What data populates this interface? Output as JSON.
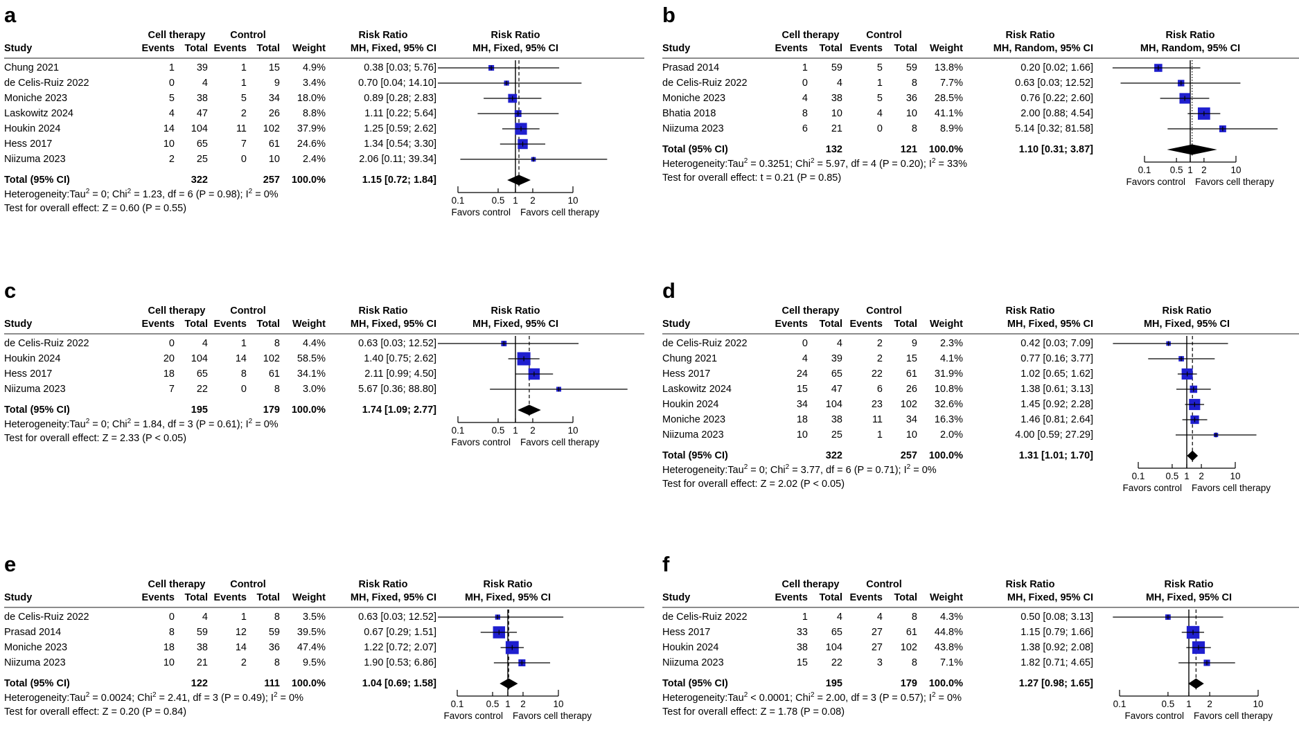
{
  "labels": {
    "study_header": "Study",
    "group_treatment": "Cell therapy",
    "group_control": "Control",
    "events_header": "Events",
    "total_header": "Total",
    "weight_header": "Weight",
    "rr_header": "Risk Ratio",
    "favors_left": "Favors control",
    "favors_right": "Favors cell therapy"
  },
  "colors": {
    "square": "#1f1fcf",
    "diamond": "#000000",
    "rule_gray": "#8c8c8c",
    "line_black": "#000000"
  },
  "chart_data": {
    "type": "forest",
    "x_scale": "log",
    "axis_tick_values": [
      0.1,
      0.5,
      1,
      2,
      10
    ],
    "axis_tick_labels": [
      "0.1",
      "0.5",
      "1",
      "2",
      "10"
    ],
    "panels": [
      {
        "panel_label": "a",
        "model": "MH, Fixed, 95% CI",
        "studies": [
          {
            "name": "Chung 2021",
            "e1": "1",
            "t1": "39",
            "e2": "1",
            "t2": "15",
            "weight_label": "4.9%",
            "weight": 4.9,
            "rr": 0.38,
            "lo": 0.03,
            "hi": 5.76,
            "rr_label": "0.38 [0.03; 5.76]"
          },
          {
            "name": "de Celis-Ruiz 2022",
            "e1": "0",
            "t1": "4",
            "e2": "1",
            "t2": "9",
            "weight_label": "3.4%",
            "weight": 3.4,
            "rr": 0.7,
            "lo": 0.04,
            "hi": 14.1,
            "rr_label": "0.70 [0.04; 14.10]"
          },
          {
            "name": "Moniche 2023",
            "e1": "5",
            "t1": "38",
            "e2": "5",
            "t2": "34",
            "weight_label": "18.0%",
            "weight": 18.0,
            "rr": 0.89,
            "lo": 0.28,
            "hi": 2.83,
            "rr_label": "0.89 [0.28; 2.83]"
          },
          {
            "name": "Laskowitz 2024",
            "e1": "4",
            "t1": "47",
            "e2": "2",
            "t2": "26",
            "weight_label": "8.8%",
            "weight": 8.8,
            "rr": 1.11,
            "lo": 0.22,
            "hi": 5.64,
            "rr_label": "1.11 [0.22; 5.64]"
          },
          {
            "name": "Houkin 2024",
            "e1": "14",
            "t1": "104",
            "e2": "11",
            "t2": "102",
            "weight_label": "37.9%",
            "weight": 37.9,
            "rr": 1.25,
            "lo": 0.59,
            "hi": 2.62,
            "rr_label": "1.25 [0.59; 2.62]"
          },
          {
            "name": "Hess 2017",
            "e1": "10",
            "t1": "65",
            "e2": "7",
            "t2": "61",
            "weight_label": "24.6%",
            "weight": 24.6,
            "rr": 1.34,
            "lo": 0.54,
            "hi": 3.3,
            "rr_label": "1.34 [0.54; 3.30]"
          },
          {
            "name": "Niizuma 2023",
            "e1": "2",
            "t1": "25",
            "e2": "0",
            "t2": "10",
            "weight_label": "2.4%",
            "weight": 2.4,
            "rr": 2.06,
            "lo": 0.11,
            "hi": 39.34,
            "rr_label": "2.06 [0.11; 39.34]"
          }
        ],
        "total": {
          "label": "Total (95% CI)",
          "t1": "322",
          "t2": "257",
          "weight_label": "100.0%",
          "rr": 1.15,
          "lo": 0.72,
          "hi": 1.84,
          "rr_label": "1.15 [0.72; 1.84]"
        },
        "heterogeneity": "Heterogeneity:Tau² = 0; Chi² = 1.23, df = 6 (P = 0.98); I² = 0%",
        "overall_test": "Test for overall effect: Z = 0.60 (P = 0.55)"
      },
      {
        "panel_label": "b",
        "model": "MH, Random, 95% CI",
        "studies": [
          {
            "name": "Prasad 2014",
            "e1": "1",
            "t1": "59",
            "e2": "5",
            "t2": "59",
            "weight_label": "13.8%",
            "weight": 13.8,
            "rr": 0.2,
            "lo": 0.02,
            "hi": 1.66,
            "rr_label": "0.20 [0.02; 1.66]"
          },
          {
            "name": "de Celis-Ruiz 2022",
            "e1": "0",
            "t1": "4",
            "e2": "1",
            "t2": "8",
            "weight_label": "7.7%",
            "weight": 7.7,
            "rr": 0.63,
            "lo": 0.03,
            "hi": 12.52,
            "rr_label": "0.63 [0.03; 12.52]"
          },
          {
            "name": "Moniche 2023",
            "e1": "4",
            "t1": "38",
            "e2": "5",
            "t2": "36",
            "weight_label": "28.5%",
            "weight": 28.5,
            "rr": 0.76,
            "lo": 0.22,
            "hi": 2.6,
            "rr_label": "0.76 [0.22; 2.60]"
          },
          {
            "name": "Bhatia 2018",
            "e1": "8",
            "t1": "10",
            "e2": "4",
            "t2": "10",
            "weight_label": "41.1%",
            "weight": 41.1,
            "rr": 2.0,
            "lo": 0.88,
            "hi": 4.54,
            "rr_label": "2.00 [0.88; 4.54]"
          },
          {
            "name": "Niizuma 2023",
            "e1": "6",
            "t1": "21",
            "e2": "0",
            "t2": "8",
            "weight_label": "8.9%",
            "weight": 8.9,
            "rr": 5.14,
            "lo": 0.32,
            "hi": 81.58,
            "rr_label": "5.14 [0.32; 81.58]"
          }
        ],
        "total": {
          "label": "Total (95% CI)",
          "t1": "132",
          "t2": "121",
          "weight_label": "100.0%",
          "rr": 1.1,
          "lo": 0.31,
          "hi": 3.87,
          "rr_label": "1.10 [0.31; 3.87]"
        },
        "heterogeneity": "Heterogeneity:Tau² = 0.3251; Chi² = 5.97, df = 4 (P = 0.20); I² = 33%",
        "overall_test": "Test for overall effect: t = 0.21 (P = 0.85)"
      },
      {
        "panel_label": "c",
        "model": "MH, Fixed, 95% CI",
        "studies": [
          {
            "name": "de Celis-Ruiz 2022",
            "e1": "0",
            "t1": "4",
            "e2": "1",
            "t2": "8",
            "weight_label": "4.4%",
            "weight": 4.4,
            "rr": 0.63,
            "lo": 0.03,
            "hi": 12.52,
            "rr_label": "0.63 [0.03; 12.52]"
          },
          {
            "name": "Houkin 2024",
            "e1": "20",
            "t1": "104",
            "e2": "14",
            "t2": "102",
            "weight_label": "58.5%",
            "weight": 58.5,
            "rr": 1.4,
            "lo": 0.75,
            "hi": 2.62,
            "rr_label": "1.40 [0.75; 2.62]"
          },
          {
            "name": "Hess 2017",
            "e1": "18",
            "t1": "65",
            "e2": "8",
            "t2": "61",
            "weight_label": "34.1%",
            "weight": 34.1,
            "rr": 2.11,
            "lo": 0.99,
            "hi": 4.5,
            "rr_label": "2.11 [0.99; 4.50]"
          },
          {
            "name": "Niizuma 2023",
            "e1": "7",
            "t1": "22",
            "e2": "0",
            "t2": "8",
            "weight_label": "3.0%",
            "weight": 3.0,
            "rr": 5.67,
            "lo": 0.36,
            "hi": 88.8,
            "rr_label": "5.67 [0.36; 88.80]"
          }
        ],
        "total": {
          "label": "Total (95% CI)",
          "t1": "195",
          "t2": "179",
          "weight_label": "100.0%",
          "rr": 1.74,
          "lo": 1.09,
          "hi": 2.77,
          "rr_label": "1.74 [1.09; 2.77]"
        },
        "heterogeneity": "Heterogeneity:Tau² = 0; Chi² = 1.84, df = 3 (P = 0.61); I² = 0%",
        "overall_test": "Test for overall effect: Z = 2.33 (P < 0.05)"
      },
      {
        "panel_label": "d",
        "model": "MH, Fixed, 95% CI",
        "studies": [
          {
            "name": "de Celis-Ruiz 2022",
            "e1": "0",
            "t1": "4",
            "e2": "2",
            "t2": "9",
            "weight_label": "2.3%",
            "weight": 2.3,
            "rr": 0.42,
            "lo": 0.03,
            "hi": 7.09,
            "rr_label": "0.42 [0.03; 7.09]"
          },
          {
            "name": "Chung 2021",
            "e1": "4",
            "t1": "39",
            "e2": "2",
            "t2": "15",
            "weight_label": "4.1%",
            "weight": 4.1,
            "rr": 0.77,
            "lo": 0.16,
            "hi": 3.77,
            "rr_label": "0.77 [0.16; 3.77]"
          },
          {
            "name": "Hess 2017",
            "e1": "24",
            "t1": "65",
            "e2": "22",
            "t2": "61",
            "weight_label": "31.9%",
            "weight": 31.9,
            "rr": 1.02,
            "lo": 0.65,
            "hi": 1.62,
            "rr_label": "1.02 [0.65; 1.62]"
          },
          {
            "name": "Laskowitz 2024",
            "e1": "15",
            "t1": "47",
            "e2": "6",
            "t2": "26",
            "weight_label": "10.8%",
            "weight": 10.8,
            "rr": 1.38,
            "lo": 0.61,
            "hi": 3.13,
            "rr_label": "1.38 [0.61; 3.13]"
          },
          {
            "name": "Houkin 2024",
            "e1": "34",
            "t1": "104",
            "e2": "23",
            "t2": "102",
            "weight_label": "32.6%",
            "weight": 32.6,
            "rr": 1.45,
            "lo": 0.92,
            "hi": 2.28,
            "rr_label": "1.45 [0.92; 2.28]"
          },
          {
            "name": "Moniche 2023",
            "e1": "18",
            "t1": "38",
            "e2": "11",
            "t2": "34",
            "weight_label": "16.3%",
            "weight": 16.3,
            "rr": 1.46,
            "lo": 0.81,
            "hi": 2.64,
            "rr_label": "1.46 [0.81; 2.64]"
          },
          {
            "name": "Niizuma 2023",
            "e1": "10",
            "t1": "25",
            "e2": "1",
            "t2": "10",
            "weight_label": "2.0%",
            "weight": 2.0,
            "rr": 4.0,
            "lo": 0.59,
            "hi": 27.29,
            "rr_label": "4.00 [0.59; 27.29]"
          }
        ],
        "total": {
          "label": "Total (95% CI)",
          "t1": "322",
          "t2": "257",
          "weight_label": "100.0%",
          "rr": 1.31,
          "lo": 1.01,
          "hi": 1.7,
          "rr_label": "1.31 [1.01; 1.70]"
        },
        "heterogeneity": "Heterogeneity:Tau² = 0; Chi² = 3.77, df = 6 (P = 0.71); I² = 0%",
        "overall_test": "Test for overall effect: Z = 2.02 (P < 0.05)"
      },
      {
        "panel_label": "e",
        "model": "MH, Fixed, 95% CI",
        "studies": [
          {
            "name": "de Celis-Ruiz 2022",
            "e1": "0",
            "t1": "4",
            "e2": "1",
            "t2": "8",
            "weight_label": "3.5%",
            "weight": 3.5,
            "rr": 0.63,
            "lo": 0.03,
            "hi": 12.52,
            "rr_label": "0.63 [0.03; 12.52]"
          },
          {
            "name": "Prasad 2014",
            "e1": "8",
            "t1": "59",
            "e2": "12",
            "t2": "59",
            "weight_label": "39.5%",
            "weight": 39.5,
            "rr": 0.67,
            "lo": 0.29,
            "hi": 1.51,
            "rr_label": "0.67 [0.29; 1.51]"
          },
          {
            "name": "Moniche 2023",
            "e1": "18",
            "t1": "38",
            "e2": "14",
            "t2": "36",
            "weight_label": "47.4%",
            "weight": 47.4,
            "rr": 1.22,
            "lo": 0.72,
            "hi": 2.07,
            "rr_label": "1.22 [0.72; 2.07]"
          },
          {
            "name": "Niizuma 2023",
            "e1": "10",
            "t1": "21",
            "e2": "2",
            "t2": "8",
            "weight_label": "9.5%",
            "weight": 9.5,
            "rr": 1.9,
            "lo": 0.53,
            "hi": 6.86,
            "rr_label": "1.90 [0.53; 6.86]"
          }
        ],
        "total": {
          "label": "Total (95% CI)",
          "t1": "122",
          "t2": "111",
          "weight_label": "100.0%",
          "rr": 1.04,
          "lo": 0.69,
          "hi": 1.58,
          "rr_label": "1.04 [0.69; 1.58]"
        },
        "heterogeneity": "Heterogeneity:Tau² = 0.0024; Chi² = 2.41, df = 3 (P = 0.49); I² = 0%",
        "overall_test": "Test for overall effect: Z = 0.20 (P = 0.84)"
      },
      {
        "panel_label": "f",
        "model": "MH, Fixed, 95% CI",
        "studies": [
          {
            "name": "de Celis-Ruiz 2022",
            "e1": "1",
            "t1": "4",
            "e2": "4",
            "t2": "8",
            "weight_label": "4.3%",
            "weight": 4.3,
            "rr": 0.5,
            "lo": 0.08,
            "hi": 3.13,
            "rr_label": "0.50 [0.08; 3.13]"
          },
          {
            "name": "Hess 2017",
            "e1": "33",
            "t1": "65",
            "e2": "27",
            "t2": "61",
            "weight_label": "44.8%",
            "weight": 44.8,
            "rr": 1.15,
            "lo": 0.79,
            "hi": 1.66,
            "rr_label": "1.15 [0.79; 1.66]"
          },
          {
            "name": "Houkin 2024",
            "e1": "38",
            "t1": "104",
            "e2": "27",
            "t2": "102",
            "weight_label": "43.8%",
            "weight": 43.8,
            "rr": 1.38,
            "lo": 0.92,
            "hi": 2.08,
            "rr_label": "1.38 [0.92; 2.08]"
          },
          {
            "name": "Niizuma 2023",
            "e1": "15",
            "t1": "22",
            "e2": "3",
            "t2": "8",
            "weight_label": "7.1%",
            "weight": 7.1,
            "rr": 1.82,
            "lo": 0.71,
            "hi": 4.65,
            "rr_label": "1.82 [0.71; 4.65]"
          }
        ],
        "total": {
          "label": "Total (95% CI)",
          "t1": "195",
          "t2": "179",
          "weight_label": "100.0%",
          "rr": 1.27,
          "lo": 0.98,
          "hi": 1.65,
          "rr_label": "1.27 [0.98; 1.65]"
        },
        "heterogeneity": "Heterogeneity:Tau² < 0.0001; Chi² = 2.00, df = 3 (P = 0.57); I² = 0%",
        "overall_test": "Test for overall effect: Z = 1.78 (P = 0.08)"
      }
    ]
  }
}
